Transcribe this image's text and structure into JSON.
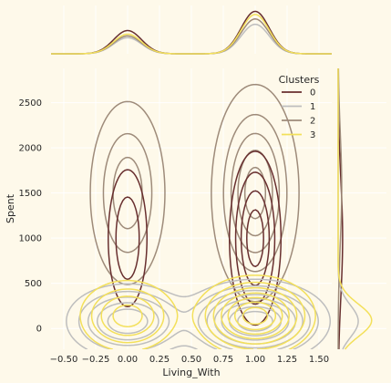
{
  "chart_data": {
    "type": "kde_jointplot",
    "xlabel": "Living_With",
    "ylabel": "Spent",
    "xlim": [
      -0.6,
      1.6
    ],
    "ylim": [
      -230,
      2880
    ],
    "xticks": [
      -0.5,
      -0.25,
      0.0,
      0.25,
      0.5,
      0.75,
      1.0,
      1.25,
      1.5
    ],
    "xtick_labels": [
      "−0.50",
      "−0.25",
      "0.00",
      "0.25",
      "0.50",
      "0.75",
      "1.00",
      "1.25",
      "1.50"
    ],
    "yticks": [
      0,
      500,
      1000,
      1500,
      2000,
      2500
    ],
    "ytick_labels": [
      "0",
      "500",
      "1000",
      "1500",
      "2000",
      "2500"
    ],
    "grid": true,
    "legend": {
      "title": "Clusters",
      "placement": "top-right"
    },
    "colors": {
      "background": "#FEF9EA",
      "grid": "#FFFFFF",
      "text": "#262626"
    },
    "series": [
      {
        "name": "0",
        "color": "#682F2F",
        "peaks": [
          {
            "x": 0.0,
            "y": 1000,
            "sx": 0.12,
            "sy": 600,
            "w": 0.4
          },
          {
            "x": 1.0,
            "y": 1000,
            "sx": 0.13,
            "sy": 620,
            "w": 0.6
          }
        ],
        "contour_levels": [
          0.3,
          0.5,
          0.7,
          0.88
        ],
        "marginal_x_peaks": [
          {
            "x": 0.0,
            "height": 0.52
          },
          {
            "x": 1.0,
            "height": 0.95
          }
        ],
        "marginal_y_peak": {
          "y": 1000,
          "width": 0.1
        }
      },
      {
        "name": "1",
        "color": "#BEBEBE",
        "peaks": [
          {
            "x": 0.0,
            "y": 80,
            "sx": 0.22,
            "sy": 190,
            "w": 0.35
          },
          {
            "x": 1.0,
            "y": 80,
            "sx": 0.24,
            "sy": 190,
            "w": 0.65
          }
        ],
        "contour_levels": [
          0.05,
          0.12,
          0.2,
          0.3,
          0.42,
          0.55,
          0.7,
          0.85
        ],
        "marginal_x_peaks": [
          {
            "x": 0.0,
            "height": 0.36
          },
          {
            "x": 1.0,
            "height": 0.66
          }
        ],
        "marginal_y_peak": {
          "y": 80,
          "width": 0.45
        }
      },
      {
        "name": "2",
        "color": "#9E8B7A",
        "peaks": [
          {
            "x": 0.0,
            "y": 1500,
            "sx": 0.15,
            "sy": 520,
            "w": 0.4
          },
          {
            "x": 1.0,
            "y": 1500,
            "sx": 0.16,
            "sy": 560,
            "w": 0.6
          }
        ],
        "contour_levels": [
          0.1,
          0.3,
          0.5,
          0.7,
          0.88
        ],
        "marginal_x_peaks": [
          {
            "x": 0.0,
            "height": 0.4
          },
          {
            "x": 1.0,
            "height": 0.78
          }
        ],
        "marginal_y_peak": {
          "y": 1550,
          "width": 0.08
        }
      },
      {
        "name": "3",
        "color": "#F3E05A",
        "peaks": [
          {
            "x": 0.0,
            "y": 140,
            "sx": 0.19,
            "sy": 200,
            "w": 0.35
          },
          {
            "x": 1.0,
            "y": 140,
            "sx": 0.21,
            "sy": 200,
            "w": 0.65
          }
        ],
        "contour_levels": [
          0.08,
          0.18,
          0.3,
          0.45,
          0.6,
          0.75,
          0.9
        ],
        "marginal_x_peaks": [
          {
            "x": 0.0,
            "height": 0.44
          },
          {
            "x": 1.0,
            "height": 0.88
          }
        ],
        "marginal_y_peak": {
          "y": 90,
          "width": 0.75
        }
      }
    ]
  }
}
